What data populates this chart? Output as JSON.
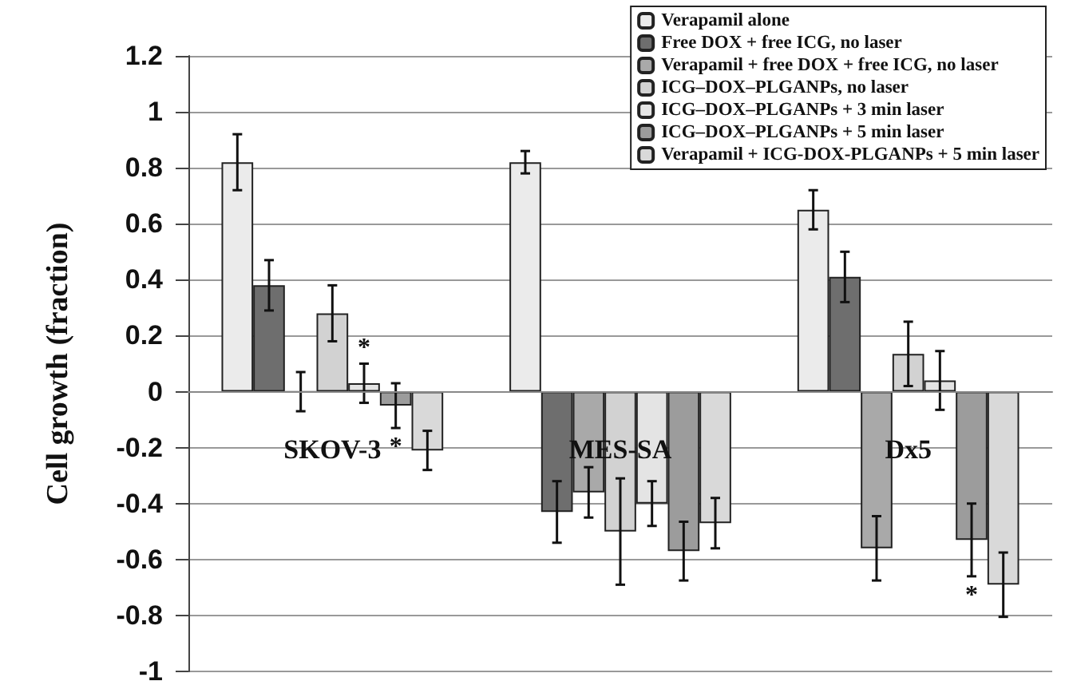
{
  "chart_data": {
    "type": "bar",
    "ylabel": "Cell growth (fraction)",
    "categories": [
      "SKOV-3",
      "MES-SA",
      "Dx5"
    ],
    "series": [
      {
        "name": "Verapamil alone",
        "color": "#ebebeb",
        "values": [
          0.82,
          0.82,
          0.65
        ],
        "errors": [
          0.1,
          0.04,
          0.07
        ]
      },
      {
        "name": "Free DOX + free ICG, no laser",
        "color": "#6e6e6e",
        "values": [
          0.38,
          -0.43,
          0.41
        ],
        "errors": [
          0.09,
          0.11,
          0.09
        ]
      },
      {
        "name": "Verapamil + free DOX + free ICG, no laser",
        "color": "#a9a9a9",
        "values": [
          0,
          -0.36,
          -0.56
        ],
        "errors": [
          0.07,
          0.09,
          0.115
        ]
      },
      {
        "name": "ICG–DOX–PLGANPs, no laser",
        "color": "#d2d2d2",
        "values": [
          0.28,
          -0.5,
          0.135
        ],
        "errors": [
          0.1,
          0.19,
          0.115
        ]
      },
      {
        "name": "ICG–DOX–PLGANPs + 3 min laser",
        "color": "#e4e4e4",
        "values": [
          0.03,
          -0.4,
          0.04
        ],
        "errors": [
          0.07,
          0.08,
          0.105
        ],
        "value_labels": [
          "*",
          null,
          null
        ]
      },
      {
        "name": "ICG–DOX–PLGANPs + 5 min laser",
        "color": "#9c9c9c",
        "values": [
          -0.05,
          -0.57,
          -0.53
        ],
        "errors": [
          0.08,
          0.105,
          0.13
        ],
        "value_labels": [
          "*",
          null,
          "*"
        ]
      },
      {
        "name": "Verapamil + ICG-DOX-PLGANPs + 5 min laser",
        "color": "#d9d9d9",
        "values": [
          -0.21,
          -0.47,
          -0.69
        ],
        "errors": [
          0.07,
          0.09,
          0.115
        ]
      }
    ],
    "ylim": [
      -1,
      1.2
    ],
    "yticks": [
      -1,
      -0.8,
      -0.6,
      -0.4,
      -0.2,
      0,
      0.2,
      0.4,
      0.6,
      0.8,
      1,
      1.2
    ],
    "grid": "y",
    "legend": "top right"
  }
}
